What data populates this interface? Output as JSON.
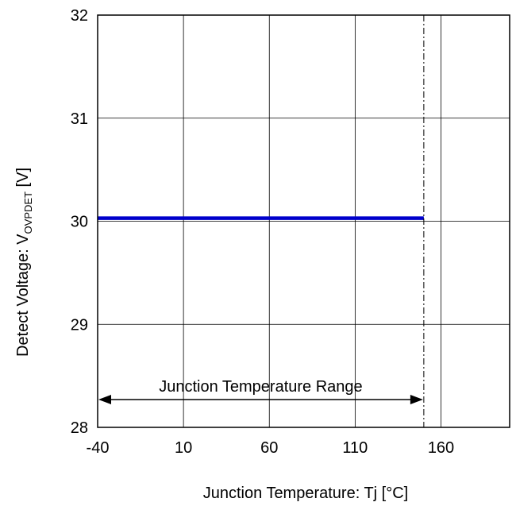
{
  "chart_data": {
    "type": "line",
    "title": "",
    "xlabel": "Junction Temperature: Tj [°C]",
    "ylabel": {
      "prefix": "Detect Voltage: V",
      "subscript": "OVPDET",
      "suffix": " [V]"
    },
    "xlim": [
      -40,
      200
    ],
    "ylim": [
      28,
      32
    ],
    "xticks": [
      -40,
      10,
      60,
      110,
      160
    ],
    "yticks": [
      28,
      29,
      30,
      31,
      32
    ],
    "grid": true,
    "series": [
      {
        "color": "#0000cc",
        "x": [
          -40,
          150
        ],
        "y": [
          30.03,
          30.03
        ]
      }
    ],
    "reference_line": {
      "x": 150,
      "style": "dash-dot"
    },
    "range_annotation": {
      "label": "Junction Temperature Range",
      "x_start": -40,
      "x_end": 150,
      "y": 28.27
    }
  }
}
